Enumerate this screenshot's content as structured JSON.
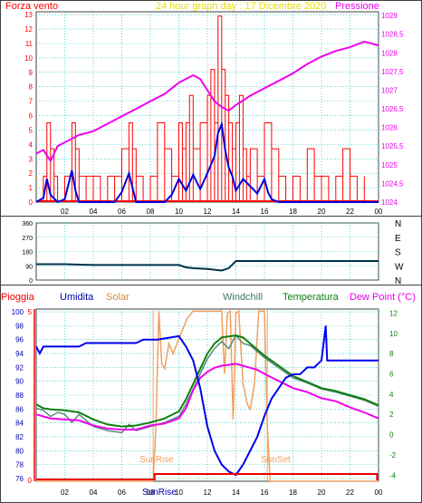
{
  "title": "24 hour graph day : 17 Dicembre 2020",
  "colors": {
    "wind": "#ff0000",
    "wind_line": "#0000dd",
    "pressure": "#ee00ee",
    "direction": "#00334a",
    "rain": "#ee0000",
    "humidity": "#0000ee",
    "solar": "#f0a060",
    "windchill": "#5a8a7a",
    "temperature": "#108010",
    "dewpoint": "#ee00ee",
    "grid": "#00bbbb",
    "title": "#ffff66",
    "sun_label": "#f0a060"
  },
  "x_ticks": [
    "02",
    "04",
    "06",
    "08",
    "10",
    "12",
    "14",
    "16",
    "18",
    "20",
    "22",
    "00"
  ],
  "chart_data": [
    {
      "type": "line",
      "name": "wind-pressure",
      "left_label": "Forza vento",
      "right_label": "Pressione",
      "left_ticks": [
        "0",
        "1",
        "2",
        "3",
        "4",
        "5",
        "6",
        "7",
        "8",
        "9",
        "10",
        "11",
        "12",
        "13"
      ],
      "right_ticks": [
        "1024",
        "1024,5",
        "1025",
        "1025,5",
        "1026",
        "1026,5",
        "1027",
        "1027,5",
        "1028",
        "1028,5",
        "1029"
      ],
      "x_range": [
        0,
        24
      ],
      "y_left_range": [
        0,
        13.2
      ],
      "y_right_range": [
        1024,
        1029.1
      ],
      "wind_gust": {
        "x": [
          0.5,
          0.75,
          1.0,
          1.25,
          1.5,
          2.0,
          2.5,
          2.75,
          3.0,
          3.5,
          4.0,
          4.5,
          5.0,
          5.5,
          6.0,
          6.5,
          6.75,
          7.0,
          7.5,
          8.0,
          8.5,
          9.0,
          9.5,
          10.0,
          10.25,
          10.5,
          10.75,
          11.0,
          11.5,
          12.0,
          12.25,
          12.5,
          12.75,
          13.0,
          13.25,
          13.5,
          13.75,
          14.0,
          14.25,
          14.5,
          14.75,
          15.0,
          15.5,
          16.0,
          16.5,
          17.0,
          17.5,
          18.0,
          18.5,
          19.0,
          19.5,
          20.0,
          20.5,
          21.0,
          21.5,
          22.0,
          22.5,
          23.0
        ],
        "y": [
          1.8,
          5.5,
          3.7,
          1.8,
          0,
          1.8,
          5.5,
          3.7,
          1.8,
          1.8,
          1.8,
          0,
          1.8,
          1.8,
          3.7,
          5.5,
          3.7,
          1.8,
          0,
          1.8,
          5.5,
          3.7,
          1.8,
          5.5,
          3.7,
          5.5,
          7.4,
          3.7,
          5.5,
          7.4,
          9.2,
          5.5,
          12.9,
          9.2,
          7.4,
          5.5,
          3.7,
          5.5,
          7.4,
          3.7,
          1.8,
          3.7,
          1.8,
          5.5,
          3.7,
          1.8,
          0,
          1.8,
          0,
          3.7,
          1.8,
          1.8,
          0,
          1.8,
          3.7,
          1.8,
          0,
          1.8
        ]
      },
      "wind_avg": {
        "x": [
          0,
          0.5,
          0.75,
          1.0,
          1.5,
          2.0,
          2.5,
          2.75,
          3.0,
          3.5,
          4.0,
          5.0,
          5.5,
          6.0,
          6.5,
          6.75,
          7.0,
          7.5,
          8.0,
          9.0,
          9.5,
          10.0,
          10.5,
          11.0,
          11.5,
          12.0,
          12.5,
          12.75,
          13.0,
          13.25,
          13.5,
          13.75,
          14.0,
          14.5,
          15.0,
          15.5,
          16.0,
          16.25,
          16.5,
          17.0,
          18.0,
          20.0,
          22.0,
          24.0
        ],
        "y": [
          0,
          0.3,
          1.6,
          0.5,
          0,
          0.2,
          2.2,
          0.8,
          0,
          0,
          0,
          0,
          0,
          0.7,
          2.0,
          1.0,
          0,
          0,
          0,
          0,
          0.5,
          1.6,
          0.8,
          1.9,
          0.9,
          2.0,
          3.2,
          4.8,
          5.4,
          3.6,
          2.4,
          1.8,
          0.8,
          1.6,
          1.1,
          0.6,
          1.6,
          0.7,
          0.2,
          0,
          0,
          0,
          0,
          0
        ]
      },
      "pressure": {
        "x": [
          0,
          0.5,
          1.0,
          1.5,
          2.0,
          3.0,
          4.0,
          5.0,
          6.0,
          7.0,
          8.0,
          9.0,
          10.0,
          10.5,
          11.0,
          11.5,
          12.0,
          12.5,
          13.0,
          13.5,
          14.0,
          15.0,
          16.0,
          17.0,
          18.0,
          19.0,
          20.0,
          21.0,
          22.0,
          23.0,
          24.0
        ],
        "y": [
          1025.3,
          1025.4,
          1025.1,
          1025.5,
          1025.6,
          1025.8,
          1025.9,
          1026.1,
          1026.3,
          1026.5,
          1026.7,
          1026.9,
          1027.2,
          1027.3,
          1027.4,
          1027.3,
          1027.0,
          1026.7,
          1026.55,
          1026.45,
          1026.6,
          1026.85,
          1027.05,
          1027.25,
          1027.45,
          1027.7,
          1027.9,
          1028.05,
          1028.15,
          1028.3,
          1028.2
        ]
      }
    },
    {
      "type": "line",
      "name": "wind-direction",
      "left_ticks": [
        "0",
        "90",
        "180",
        "270",
        "360"
      ],
      "right_ticks": [
        "N",
        "W",
        "S",
        "E",
        "N"
      ],
      "y_range": [
        0,
        360
      ],
      "x": [
        0,
        2,
        4,
        6,
        8,
        10,
        10.5,
        11,
        12,
        13,
        13.5,
        14,
        15,
        24
      ],
      "y": [
        100,
        100,
        95,
        95,
        95,
        95,
        80,
        75,
        70,
        60,
        75,
        120,
        120,
        120
      ]
    },
    {
      "type": "line",
      "name": "humidity-temperature",
      "labels": [
        "Pioggia",
        "Umidita",
        "Solar",
        "Windchill",
        "Temperatura",
        "Dew Point (°C)"
      ],
      "left_ticks": [
        "76",
        "78",
        "80",
        "82",
        "84",
        "86",
        "88",
        "90",
        "92",
        "94",
        "96",
        "98",
        "100"
      ],
      "right_ticks": [
        "-4",
        "-2",
        "0",
        "2",
        "4",
        "6",
        "8",
        "10",
        "12"
      ],
      "rain_ticks": [
        "0",
        "5"
      ],
      "y_left_range": [
        75.6,
        100.4
      ],
      "y_right_range": [
        -4.6,
        12.4
      ],
      "sunrise_label": "SunRise",
      "sunset_label": "SunSet",
      "sunrise_x": 8.2,
      "sunset_x": 16.2,
      "humidity": {
        "x": [
          0,
          0.25,
          0.5,
          1.0,
          3.0,
          3.5,
          5.0,
          7.0,
          7.5,
          8.5,
          10.0,
          10.5,
          11.0,
          11.5,
          12.0,
          12.5,
          13.0,
          13.5,
          14.0,
          14.5,
          15.0,
          15.5,
          16.0,
          16.5,
          17.0,
          17.5,
          18.0,
          18.5,
          19.0,
          19.5,
          20.0,
          20.3,
          20.4,
          20.5,
          21.0,
          21.5,
          22.0,
          22.5,
          23.0,
          24.0
        ],
        "y": [
          95,
          94,
          95,
          95,
          95,
          95.5,
          95.5,
          95.5,
          96,
          96,
          96.5,
          95,
          93,
          89,
          83.5,
          80,
          78,
          77,
          76.5,
          78,
          80,
          82,
          85,
          87.5,
          89,
          90.5,
          91,
          91,
          92,
          92,
          93,
          98,
          93,
          93,
          93,
          93,
          93,
          93,
          93,
          93
        ]
      },
      "temperature": {
        "x": [
          0,
          0.5,
          1,
          2,
          3,
          4,
          5,
          6,
          7,
          8,
          9,
          10,
          10.5,
          11,
          11.5,
          12,
          12.5,
          13,
          13.5,
          14,
          14.5,
          15,
          15.5,
          16,
          17,
          18,
          19,
          20,
          21,
          22,
          23,
          24
        ],
        "y": [
          3.0,
          2.6,
          2.5,
          2.4,
          2.2,
          1.5,
          1.0,
          0.8,
          0.9,
          1.2,
          1.6,
          2.3,
          3.5,
          5.0,
          6.5,
          8.0,
          9.0,
          9.6,
          9.7,
          9.8,
          9.6,
          9.0,
          8.4,
          7.8,
          6.8,
          5.8,
          5.2,
          4.6,
          4.3,
          3.9,
          3.5,
          2.9
        ]
      },
      "windchill": {
        "x": [
          0,
          0.5,
          1,
          1.5,
          2,
          2.5,
          3,
          3.5,
          4,
          5,
          6,
          6.5,
          7,
          8,
          9,
          10,
          10.5,
          11,
          11.5,
          12,
          12.5,
          13,
          13.5,
          14,
          14.5,
          15,
          15.5,
          16,
          17,
          18,
          19,
          20,
          21,
          22,
          23,
          24
        ],
        "y": [
          2.6,
          2.4,
          1.8,
          2.2,
          2.0,
          1.2,
          2.0,
          1.4,
          0.8,
          0.4,
          0.2,
          1.0,
          0.4,
          0.8,
          1.2,
          1.8,
          3.0,
          4.5,
          6.0,
          7.5,
          8.5,
          9.2,
          8.5,
          9.8,
          9.0,
          8.8,
          8.2,
          7.6,
          6.6,
          5.6,
          5.1,
          4.5,
          4.2,
          3.8,
          3.4,
          2.8
        ]
      },
      "dewpoint": {
        "x": [
          0,
          1,
          2,
          3,
          4,
          5,
          6,
          7,
          8,
          9,
          10,
          10.5,
          11,
          11.5,
          12,
          12.5,
          13,
          13.5,
          14,
          14.5,
          15,
          15.5,
          16,
          17,
          18,
          19,
          20,
          21,
          22,
          23,
          24
        ],
        "y": [
          2.0,
          1.6,
          1.5,
          1.4,
          0.9,
          0.6,
          0.5,
          0.5,
          0.9,
          1.1,
          1.6,
          2.6,
          4.4,
          5.6,
          6.2,
          6.6,
          6.8,
          6.9,
          7.0,
          6.8,
          6.6,
          6.4,
          6.0,
          5.3,
          4.6,
          4.2,
          3.6,
          3.3,
          2.7,
          2.2,
          1.6
        ]
      },
      "solar": {
        "x": [
          0,
          8.2,
          8.4,
          8.6,
          8.8,
          9.0,
          9.3,
          9.6,
          10.0,
          10.3,
          10.6,
          11.0,
          11.5,
          12.0,
          12.5,
          13.0,
          13.2,
          13.4,
          13.6,
          13.8,
          14.0,
          14.2,
          14.5,
          14.8,
          15.0,
          15.3,
          15.6,
          16.0,
          16.2,
          16.4,
          24
        ],
        "y": [
          -4.6,
          -4.6,
          1.0,
          12.2,
          7.0,
          6.5,
          9.0,
          8.0,
          9.5,
          10.5,
          11.5,
          12.2,
          12.2,
          12.2,
          12.2,
          12.2,
          6.0,
          12.0,
          12.2,
          1.5,
          12.0,
          12.2,
          5.0,
          3.0,
          2.5,
          5.0,
          12.2,
          12.2,
          1.0,
          -4.6,
          -4.6
        ]
      },
      "rain": {
        "x": [
          0,
          24
        ],
        "y": [
          0,
          0
        ]
      }
    }
  ]
}
